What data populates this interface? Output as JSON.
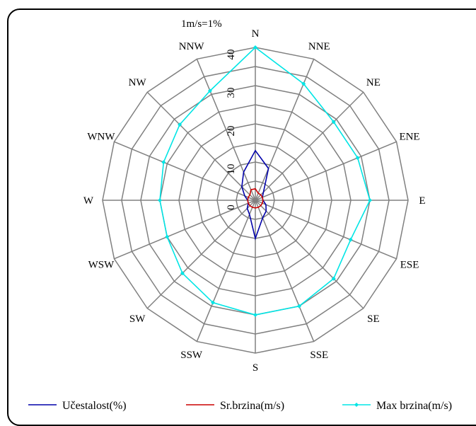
{
  "chart_data": {
    "type": "radar",
    "note": "1m/s=1%",
    "directions": [
      "N",
      "NNE",
      "NE",
      "ENE",
      "E",
      "ESE",
      "SE",
      "SSE",
      "S",
      "SSW",
      "SW",
      "WSW",
      "W",
      "WNW",
      "NW",
      "NNW"
    ],
    "radial_ticks": [
      "0",
      "10",
      "20",
      "30",
      "40"
    ],
    "rlim": [
      0,
      40
    ],
    "grid": true,
    "legend_position": "bottom",
    "series": [
      {
        "name": "Učestalost(%)",
        "color": "#0000aa",
        "marker": "none",
        "values": [
          13,
          9,
          3,
          2,
          2,
          3,
          4,
          5,
          10,
          4,
          3,
          2,
          2,
          3,
          5,
          8
        ]
      },
      {
        "name": "Sr.brzina(m/s)",
        "color": "#cc0000",
        "marker": "none",
        "values": [
          3,
          2,
          2,
          2,
          2,
          2,
          2,
          2,
          2,
          2,
          2,
          2,
          2,
          2,
          2,
          3
        ]
      },
      {
        "name": "Max brzina(m/s)",
        "color": "#00e5e5",
        "marker": "diamond",
        "values": [
          40,
          33,
          29,
          29,
          30,
          27,
          29,
          30,
          30,
          29,
          27,
          25,
          25,
          26,
          28,
          31
        ]
      }
    ]
  }
}
